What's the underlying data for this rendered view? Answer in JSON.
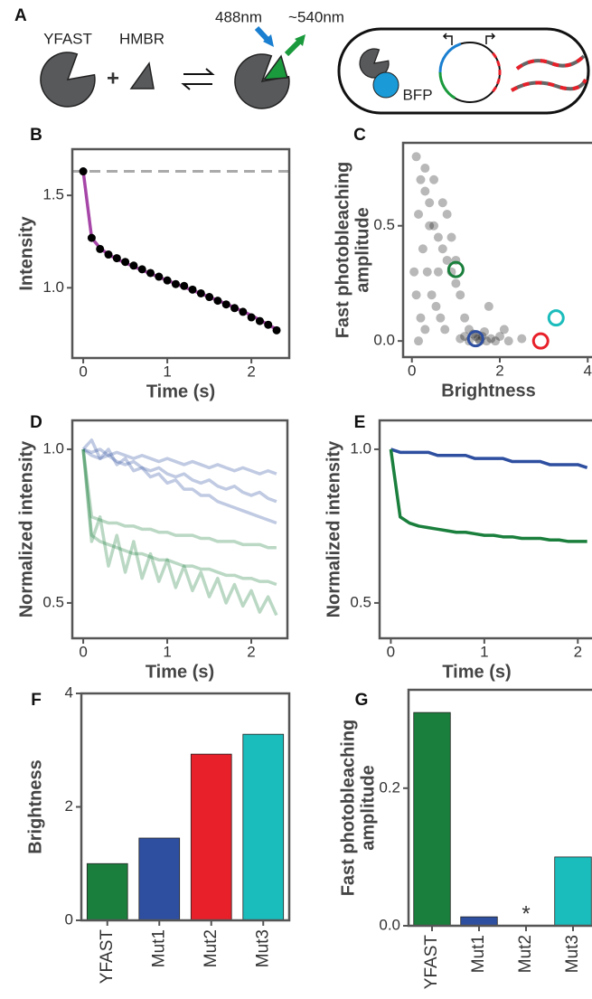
{
  "diagram": {
    "label": "A",
    "protein": "YFAST",
    "ligand": "HMBR",
    "plus": "+",
    "excitation": "488nm",
    "emission": "~540nm",
    "reporter": "BFP"
  },
  "chart_data": [
    {
      "type": "line",
      "label": "B",
      "xlabel": "Time (s)",
      "ylabel": "Intensity",
      "x": [
        0,
        0.1,
        0.2,
        0.3,
        0.4,
        0.5,
        0.6,
        0.7,
        0.8,
        0.9,
        1.0,
        1.1,
        1.2,
        1.3,
        1.4,
        1.5,
        1.6,
        1.7,
        1.8,
        1.9,
        2.0,
        2.1,
        2.2,
        2.3
      ],
      "series": [
        {
          "style": "line",
          "color": "#a646a8",
          "values": [
            1.63,
            1.27,
            1.215,
            1.18,
            1.155,
            1.135,
            1.115,
            1.095,
            1.077,
            1.058,
            1.04,
            1.022,
            1.004,
            0.986,
            0.968,
            0.95,
            0.932,
            0.913,
            0.893,
            0.872,
            0.85,
            0.826,
            0.8,
            0.775
          ]
        },
        {
          "style": "markers",
          "color": "#000000",
          "values": [
            1.63,
            1.27,
            1.21,
            1.18,
            1.16,
            1.14,
            1.12,
            1.1,
            1.08,
            1.06,
            1.04,
            1.02,
            1.01,
            0.99,
            0.97,
            0.95,
            0.93,
            0.91,
            0.89,
            0.87,
            0.84,
            0.82,
            0.8,
            0.77
          ]
        }
      ],
      "reference_line": 1.63,
      "reference_color": "#aaaaaa",
      "xlim": [
        -0.13,
        2.45
      ],
      "xticks": [
        0,
        1,
        2
      ],
      "ylim": [
        0.62,
        1.75
      ],
      "yticks": [
        {
          "value": 1,
          "label": "1.0"
        },
        1.5
      ]
    },
    {
      "type": "scatter",
      "label": "C",
      "xlabel": "Brightness",
      "ylabel": [
        "Fast photobleaching",
        "amplitude"
      ],
      "points": {
        "color": "#000000",
        "x": [
          0.1,
          0.2,
          0.3,
          0.15,
          0.4,
          0.5,
          0.6,
          0.25,
          0.35,
          0.7,
          0.8,
          0.9,
          1.0,
          1.1,
          0.45,
          0.55,
          0.65,
          0.2,
          0.3,
          0.75,
          1.2,
          1.3,
          0.05,
          0.1,
          0.5,
          0.8,
          1.4,
          1.5,
          1.6,
          1.7,
          1.8,
          1.9,
          2.0,
          1.3,
          1.2,
          1.1,
          1.55,
          1.65,
          2.2,
          2.5,
          1.0,
          0.9,
          0.4,
          0.6,
          0.3,
          1.75,
          2.1,
          0.15,
          0.7,
          1.45
        ],
        "y": [
          0.8,
          0.7,
          0.65,
          0.55,
          0.6,
          0.5,
          0.45,
          0.4,
          0.3,
          0.4,
          0.35,
          0.3,
          0.25,
          0.2,
          0.2,
          0.15,
          0.1,
          0.1,
          0.05,
          0.05,
          0.1,
          0.05,
          0.3,
          0.2,
          0.7,
          0.55,
          0.03,
          0.01,
          0.02,
          0.0,
          0.01,
          0.0,
          0.02,
          0.0,
          0.02,
          0.01,
          0.0,
          0.04,
          0.0,
          0.01,
          0.35,
          0.45,
          0.5,
          0.3,
          0.75,
          0.15,
          0.05,
          0.0,
          0.6,
          0.02
        ]
      },
      "highlights": {
        "x": [
          1.0,
          1.45,
          2.93,
          3.28
        ],
        "y": [
          0.31,
          0.01,
          0.0,
          0.1
        ],
        "colors": [
          "#1a7f3c",
          "#2e4fa0",
          "#e8202a",
          "#1bbcbc"
        ]
      },
      "xlim": [
        -0.2,
        4.2
      ],
      "xticks": [
        0,
        2,
        4
      ],
      "ylim": [
        -0.07,
        0.86
      ],
      "yticks": [
        {
          "value": 0,
          "label": "0.0"
        },
        0.5
      ]
    },
    {
      "type": "line",
      "label": "D",
      "xlabel": "Time (s)",
      "ylabel": "Normalized intensity",
      "x": [
        0,
        0.1,
        0.2,
        0.3,
        0.4,
        0.5,
        0.6,
        0.7,
        0.8,
        0.9,
        1.0,
        1.1,
        1.2,
        1.3,
        1.4,
        1.5,
        1.6,
        1.7,
        1.8,
        1.9,
        2.0,
        2.1,
        2.2,
        2.3
      ],
      "series": [
        {
          "style": "line",
          "color": "#2e4fa0",
          "opacity": 0.3,
          "values": [
            1.0,
            0.99,
            1.0,
            0.98,
            0.99,
            0.98,
            0.97,
            0.98,
            0.97,
            0.96,
            0.97,
            0.96,
            0.95,
            0.96,
            0.95,
            0.94,
            0.95,
            0.94,
            0.93,
            0.94,
            0.93,
            0.92,
            0.93,
            0.92
          ]
        },
        {
          "style": "line",
          "color": "#2e4fa0",
          "opacity": 0.3,
          "values": [
            1.0,
            0.98,
            0.97,
            0.98,
            0.96,
            0.95,
            0.96,
            0.94,
            0.93,
            0.94,
            0.92,
            0.91,
            0.92,
            0.9,
            0.89,
            0.9,
            0.88,
            0.87,
            0.88,
            0.86,
            0.85,
            0.86,
            0.84,
            0.83
          ]
        },
        {
          "style": "line",
          "color": "#2e4fa0",
          "opacity": 0.3,
          "values": [
            1.0,
            1.03,
            0.97,
            1.0,
            0.95,
            0.97,
            0.93,
            0.94,
            0.91,
            0.92,
            0.89,
            0.9,
            0.87,
            0.87,
            0.85,
            0.85,
            0.83,
            0.82,
            0.81,
            0.8,
            0.79,
            0.78,
            0.77,
            0.76
          ]
        },
        {
          "style": "line",
          "color": "#1a7f3c",
          "opacity": 0.3,
          "values": [
            1.0,
            0.78,
            0.77,
            0.76,
            0.76,
            0.75,
            0.75,
            0.74,
            0.74,
            0.73,
            0.73,
            0.72,
            0.72,
            0.72,
            0.71,
            0.71,
            0.7,
            0.7,
            0.7,
            0.69,
            0.69,
            0.69,
            0.68,
            0.68
          ]
        },
        {
          "style": "line",
          "color": "#1a7f3c",
          "opacity": 0.3,
          "values": [
            1.0,
            0.72,
            0.7,
            0.69,
            0.68,
            0.67,
            0.66,
            0.66,
            0.65,
            0.64,
            0.64,
            0.63,
            0.62,
            0.62,
            0.61,
            0.61,
            0.6,
            0.59,
            0.59,
            0.58,
            0.58,
            0.57,
            0.57,
            0.56
          ]
        },
        {
          "style": "line",
          "color": "#1a7f3c",
          "opacity": 0.3,
          "values": [
            1.0,
            0.7,
            0.78,
            0.62,
            0.72,
            0.6,
            0.7,
            0.58,
            0.66,
            0.57,
            0.64,
            0.55,
            0.62,
            0.54,
            0.6,
            0.52,
            0.58,
            0.5,
            0.56,
            0.49,
            0.54,
            0.47,
            0.52,
            0.46
          ]
        }
      ],
      "xlim": [
        -0.13,
        2.43
      ],
      "xticks": [
        0,
        1,
        2
      ],
      "ylim": [
        0.385,
        1.094
      ],
      "yticks": [
        0.5,
        {
          "value": 1,
          "label": "1.0"
        }
      ]
    },
    {
      "type": "line",
      "label": "E",
      "xlabel": "Time (s)",
      "ylabel": "Normalized intensity",
      "x": [
        0,
        0.1,
        0.2,
        0.3,
        0.4,
        0.5,
        0.6,
        0.7,
        0.8,
        0.9,
        1.0,
        1.1,
        1.2,
        1.3,
        1.4,
        1.5,
        1.6,
        1.7,
        1.8,
        1.9,
        2.0,
        2.1
      ],
      "series": [
        {
          "style": "line",
          "color": "#2e4fa0",
          "values": [
            1.0,
            0.99,
            0.99,
            0.99,
            0.99,
            0.98,
            0.98,
            0.98,
            0.98,
            0.97,
            0.97,
            0.97,
            0.97,
            0.96,
            0.96,
            0.96,
            0.96,
            0.95,
            0.95,
            0.95,
            0.95,
            0.94
          ]
        },
        {
          "style": "line",
          "color": "#1a7f3c",
          "values": [
            1.0,
            0.78,
            0.76,
            0.75,
            0.745,
            0.74,
            0.735,
            0.73,
            0.73,
            0.725,
            0.72,
            0.72,
            0.715,
            0.715,
            0.71,
            0.71,
            0.71,
            0.705,
            0.705,
            0.7,
            0.7,
            0.7
          ]
        }
      ],
      "xlim": [
        -0.12,
        2.2
      ],
      "xticks": [
        0,
        1,
        2
      ],
      "ylim": [
        0.385,
        1.094
      ],
      "yticks": [
        0.5,
        {
          "value": 1,
          "label": "1.0"
        }
      ]
    },
    {
      "type": "bar",
      "label": "F",
      "ylabel": "Brightness",
      "categories": [
        "YFAST",
        "Mut1",
        "Mut2",
        "Mut3"
      ],
      "values": [
        1.0,
        1.45,
        2.93,
        3.28
      ],
      "colors": [
        "#1a7f3c",
        "#2e4fa0",
        "#e8202a",
        "#1bbcbc"
      ],
      "ylim": [
        0,
        4
      ],
      "yticks": [
        0,
        2,
        4
      ]
    },
    {
      "type": "bar",
      "label": "G",
      "ylabel": [
        "Fast photobleaching",
        "amplitude"
      ],
      "categories": [
        "YFAST",
        "Mut1",
        "Mut2",
        "Mut3"
      ],
      "values": [
        0.31,
        0.013,
        null,
        0.1
      ],
      "value_labels": [
        null,
        null,
        "*",
        null
      ],
      "value_label_color": "#e8202a",
      "colors": [
        "#1a7f3c",
        "#2e4fa0",
        "#e8202a",
        "#1bbcbc"
      ],
      "ylim": [
        0,
        0.343
      ],
      "yticks": [
        {
          "value": 0,
          "label": "0.0"
        },
        0.2
      ]
    }
  ]
}
